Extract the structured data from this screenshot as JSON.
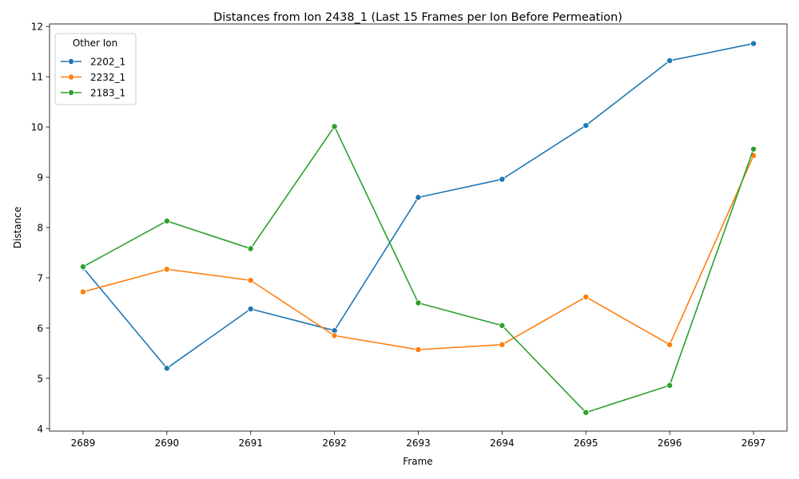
{
  "chart_data": {
    "type": "line",
    "title": "Distances from Ion 2438_1 (Last 15 Frames per Ion Before Permeation)",
    "xlabel": "Frame",
    "ylabel": "Distance",
    "x": [
      2689,
      2690,
      2691,
      2692,
      2693,
      2694,
      2695,
      2696,
      2697
    ],
    "x_ticks": [
      "2689",
      "2690",
      "2691",
      "2692",
      "2693",
      "2694",
      "2695",
      "2696",
      "2697"
    ],
    "y_ticks": [
      "4",
      "5",
      "6",
      "7",
      "8",
      "9",
      "10",
      "11",
      "12"
    ],
    "xlim": [
      2688.6,
      2697.4
    ],
    "ylim": [
      3.95,
      12.05
    ],
    "grid": false,
    "legend": {
      "title": "Other Ion",
      "placement": "top-left"
    },
    "series": [
      {
        "name": "2202_1",
        "color": "#1f77b4",
        "values": [
          7.2,
          5.2,
          6.38,
          5.95,
          8.6,
          8.96,
          10.03,
          11.32,
          11.66
        ]
      },
      {
        "name": "2232_1",
        "color": "#ff7f0e",
        "values": [
          6.72,
          7.17,
          6.95,
          5.85,
          5.57,
          5.67,
          6.62,
          5.67,
          9.43
        ]
      },
      {
        "name": "2183_1",
        "color": "#2ca02c",
        "values": [
          7.22,
          8.13,
          7.58,
          10.01,
          6.5,
          6.05,
          4.32,
          4.86,
          9.56
        ]
      }
    ]
  }
}
